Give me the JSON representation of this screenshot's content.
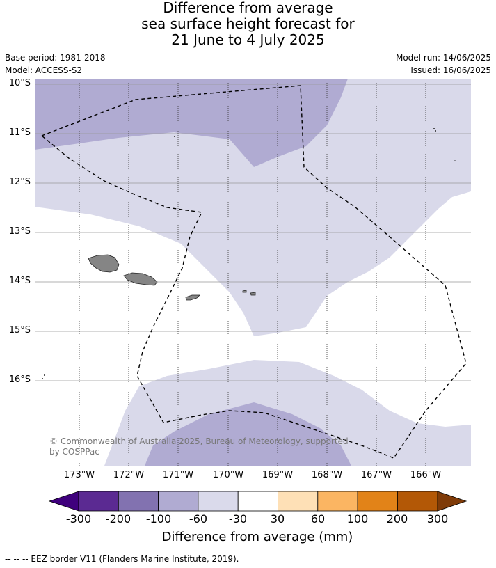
{
  "title": {
    "line1": "Difference from average",
    "line2": "sea surface height forecast for",
    "line3": "21 June to 4 July 2025"
  },
  "meta": {
    "base_period": "Base period: 1981-2018",
    "model": "Model: ACCESS-S2",
    "model_run": "Model run: 14/06/2025",
    "issued": "Issued: 16/06/2025"
  },
  "map": {
    "lat_labels": [
      "10°S",
      "11°S",
      "12°S",
      "13°S",
      "14°S",
      "15°S",
      "16°S"
    ],
    "lon_labels": [
      "173°W",
      "172°W",
      "171°W",
      "170°W",
      "169°W",
      "168°W",
      "167°W",
      "166°W"
    ],
    "copyright_line1": "© Commonwealth of Australia 2025, Bureau of Meteorology, supported",
    "copyright_line2": "by COSPPac",
    "land_color": "#858585",
    "eez_border_style": "dashed"
  },
  "colorbar": {
    "tick_labels": [
      "-300",
      "-200",
      "-100",
      "-60",
      "-30",
      "30",
      "60",
      "100",
      "200",
      "300"
    ],
    "colors": [
      "#3f007d",
      "#5b2a92",
      "#8272b0",
      "#b0abd2",
      "#dadaeb",
      "#ffffff",
      "#fee0b6",
      "#fbb562",
      "#e28318",
      "#b35806",
      "#7f3b08"
    ],
    "label": "Difference from average (mm)"
  },
  "footer": {
    "legend": "--  --  -- EEZ border V11 (Flanders Marine Institute, 2019)."
  }
}
